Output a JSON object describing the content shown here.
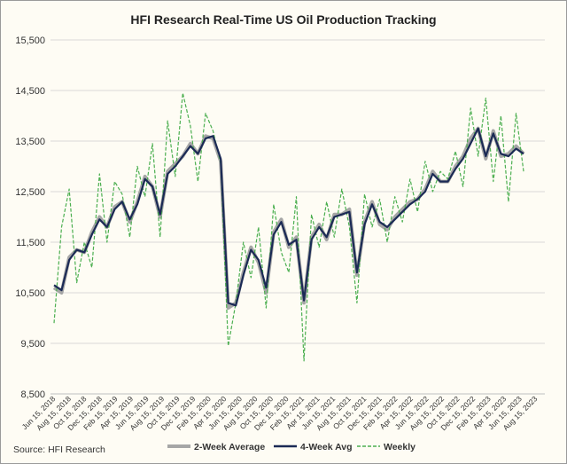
{
  "chart_data": {
    "type": "line",
    "title": "HFI Research Real-Time US Oil Production Tracking",
    "source": "Source: HFI Research",
    "xlabel": "",
    "ylabel": "",
    "ylim": [
      8500,
      15500
    ],
    "yticks": [
      "8,500",
      "9,500",
      "10,500",
      "11,500",
      "12,500",
      "13,500",
      "14,500",
      "15,500"
    ],
    "ytick_values": [
      8500,
      9500,
      10500,
      11500,
      12500,
      13500,
      14500,
      15500
    ],
    "xticks": [
      "Jun 15, 2018",
      "Aug 15, 2018",
      "Oct 15, 2018",
      "Dec 15, 2018",
      "Feb 15, 2019",
      "Apr 15, 2019",
      "Jun 15, 2019",
      "Aug 15, 2019",
      "Oct 15, 2019",
      "Dec 15, 2019",
      "Feb 15, 2020",
      "Apr 15, 2020",
      "Jun 15, 2020",
      "Aug 15, 2020",
      "Oct 15, 2020",
      "Dec 15, 2020",
      "Feb 15, 2021",
      "Apr 15, 2021",
      "Jun 15, 2021",
      "Aug 15, 2021",
      "Oct 15, 2021",
      "Dec 15, 2021",
      "Feb 15, 2022",
      "Apr 15, 2022",
      "Jun 15, 2022",
      "Aug 15, 2022",
      "Oct 15, 2022",
      "Dec 15, 2022",
      "Feb 15, 2023",
      "Apr 15, 2023",
      "Jun 15, 2023",
      "Aug 15, 2023"
    ],
    "grid": "horizontal",
    "legend_position": "bottom",
    "x": [
      "Jun 15, 2018",
      "Jul 1, 2018",
      "Aug 1, 2018",
      "Sep 1, 2018",
      "Oct 1, 2018",
      "Nov 1, 2018",
      "Dec 1, 2018",
      "Jan 1, 2019",
      "Feb 1, 2019",
      "Mar 1, 2019",
      "Apr 1, 2019",
      "May 1, 2019",
      "Jun 1, 2019",
      "Jul 1, 2019",
      "Aug 1, 2019",
      "Sep 1, 2019",
      "Oct 1, 2019",
      "Nov 1, 2019",
      "Dec 1, 2019",
      "Jan 1, 2020",
      "Feb 1, 2020",
      "Mar 1, 2020",
      "Apr 1, 2020",
      "May 1, 2020",
      "Jun 1, 2020",
      "Jul 1, 2020",
      "Aug 1, 2020",
      "Sep 1, 2020",
      "Oct 1, 2020",
      "Nov 1, 2020",
      "Dec 1, 2020",
      "Jan 1, 2021",
      "Feb 1, 2021",
      "Mar 1, 2021",
      "Apr 1, 2021",
      "May 1, 2021",
      "Jun 1, 2021",
      "Jul 1, 2021",
      "Aug 1, 2021",
      "Sep 1, 2021",
      "Oct 1, 2021",
      "Nov 1, 2021",
      "Dec 1, 2021",
      "Jan 1, 2022",
      "Feb 1, 2022",
      "Mar 1, 2022",
      "Apr 1, 2022",
      "May 1, 2022",
      "Jun 1, 2022",
      "Jul 1, 2022",
      "Aug 1, 2022",
      "Sep 1, 2022",
      "Oct 1, 2022",
      "Nov 1, 2022",
      "Dec 1, 2022",
      "Jan 1, 2023",
      "Feb 1, 2023",
      "Mar 1, 2023",
      "Apr 1, 2023",
      "May 1, 2023",
      "Jun 1, 2023",
      "Jul 1, 2023",
      "Aug 1, 2023"
    ],
    "series": [
      {
        "name": "2-Week Average",
        "color": "#a6a6a6",
        "style": "solid-thick",
        "values": [
          10600,
          10500,
          11200,
          11350,
          11300,
          11700,
          12000,
          11800,
          12200,
          12300,
          11900,
          12300,
          12800,
          12600,
          12000,
          12900,
          13050,
          13200,
          13450,
          13250,
          13600,
          13550,
          13100,
          10200,
          10300,
          10900,
          11400,
          11100,
          10500,
          11700,
          11950,
          11400,
          11600,
          10300,
          11600,
          11850,
          11550,
          12050,
          12050,
          12150,
          10850,
          11900,
          12300,
          11850,
          11750,
          12000,
          12150,
          12300,
          12350,
          12550,
          12900,
          12700,
          12700,
          13000,
          13200,
          13550,
          13750,
          13150,
          13700,
          13200,
          13250,
          13400,
          13250
        ]
      },
      {
        "name": "4-Week Avg",
        "color": "#1b2a55",
        "style": "solid",
        "values": [
          10650,
          10550,
          11150,
          11350,
          11300,
          11650,
          11950,
          11800,
          12150,
          12300,
          11950,
          12250,
          12750,
          12600,
          12050,
          12850,
          13000,
          13200,
          13400,
          13250,
          13550,
          13600,
          13150,
          10300,
          10250,
          10850,
          11350,
          11150,
          10600,
          11650,
          11900,
          11450,
          11550,
          10350,
          11550,
          11800,
          11600,
          12000,
          12050,
          12100,
          10900,
          11850,
          12250,
          11900,
          11800,
          11950,
          12100,
          12250,
          12350,
          12500,
          12850,
          12700,
          12700,
          12950,
          13150,
          13450,
          13750,
          13200,
          13650,
          13250,
          13200,
          13350,
          13250
        ]
      },
      {
        "name": "Weekly",
        "color": "#4caf50",
        "style": "dashed",
        "values": [
          9900,
          11800,
          12550,
          10700,
          11500,
          11000,
          12850,
          11500,
          12700,
          12450,
          11600,
          13000,
          12400,
          13450,
          11600,
          13900,
          12800,
          14450,
          13800,
          12700,
          14050,
          13700,
          13050,
          9450,
          10300,
          11500,
          10800,
          11800,
          10200,
          12250,
          11300,
          10900,
          12400,
          9150,
          12050,
          11400,
          12300,
          11600,
          12550,
          11800,
          10300,
          12450,
          11800,
          12350,
          11500,
          12400,
          11900,
          12750,
          12100,
          13100,
          12500,
          12900,
          12750,
          13300,
          12600,
          14150,
          13200,
          14350,
          12700,
          14000,
          12300,
          14050,
          12900
        ]
      }
    ]
  }
}
